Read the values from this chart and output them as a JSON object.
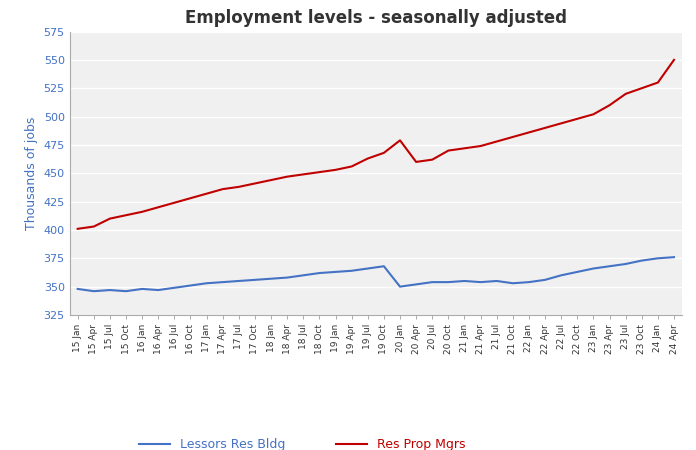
{
  "title": "Employment levels - seasonally adjusted",
  "ylabel": "Thousands of jobs",
  "ylim": [
    325,
    575
  ],
  "yticks": [
    325,
    350,
    375,
    400,
    425,
    450,
    475,
    500,
    525,
    550,
    575
  ],
  "fig_bg_color": "#ffffff",
  "plot_bg_color": "#f0f0f0",
  "blue_color": "#4472C4",
  "red_color": "#C00000",
  "legend_blue": "Lessors Res Bldg",
  "legend_red": "Res Prop Mgrs",
  "x_labels": [
    "15 Jan",
    "15 Apr",
    "15 Jul",
    "15 Oct",
    "16 Jan",
    "16 Apr",
    "16 Jul",
    "16 Oct",
    "17 Jan",
    "17 Apr",
    "17 Jul",
    "17 Oct",
    "18 Jan",
    "18 Apr",
    "18 Jul",
    "18 Oct",
    "19 Jan",
    "19 Apr",
    "19 Jul",
    "19 Oct",
    "20 Jan",
    "20 Apr",
    "20 Jul",
    "20 Oct",
    "21 Jan",
    "21 Apr",
    "21 Jul",
    "21 Oct",
    "22 Jan",
    "22 Apr",
    "22 Jul",
    "22 Oct",
    "23 Jan",
    "23 Apr",
    "23 Jul",
    "23 Oct",
    "24 Jan",
    "24 Apr"
  ],
  "blue_data": [
    348,
    346,
    347,
    346,
    348,
    347,
    349,
    351,
    353,
    354,
    355,
    356,
    357,
    358,
    360,
    362,
    363,
    364,
    366,
    368,
    350,
    352,
    354,
    354,
    355,
    354,
    355,
    353,
    354,
    356,
    360,
    363,
    366,
    368,
    370,
    373,
    375,
    376
  ],
  "red_data": [
    401,
    403,
    410,
    413,
    416,
    420,
    424,
    428,
    432,
    436,
    438,
    441,
    444,
    447,
    449,
    451,
    453,
    456,
    463,
    468,
    479,
    460,
    462,
    470,
    472,
    474,
    478,
    482,
    486,
    490,
    494,
    498,
    502,
    510,
    520,
    525,
    530,
    550
  ]
}
